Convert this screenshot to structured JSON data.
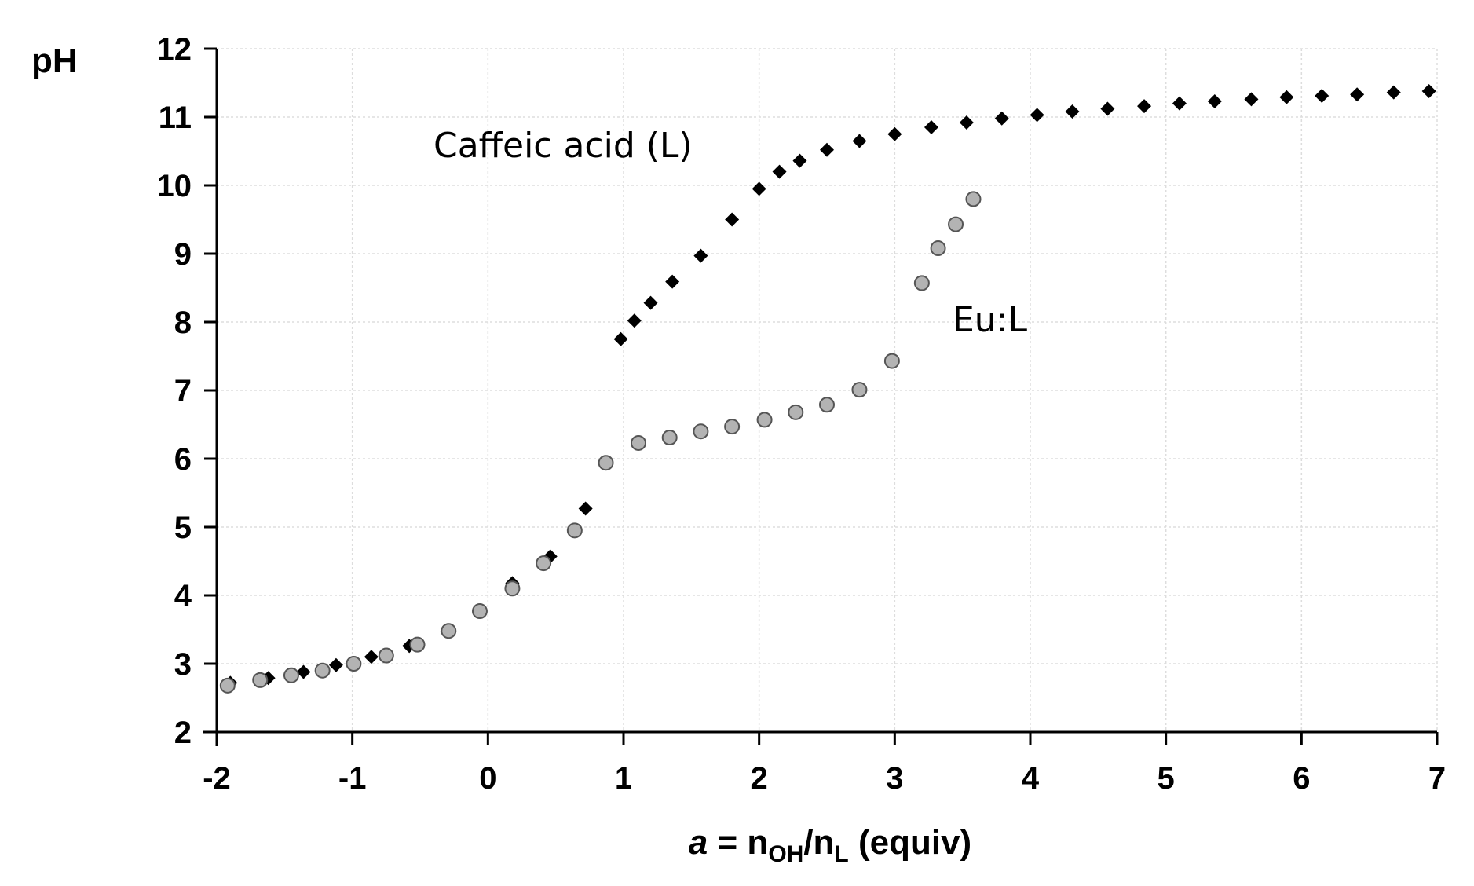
{
  "chart_data": {
    "type": "scatter",
    "xlim": [
      -2,
      7
    ],
    "ylim": [
      2,
      12
    ],
    "xticks": [
      "-2",
      "-1",
      "0",
      "1",
      "2",
      "3",
      "4",
      "5",
      "6",
      "7"
    ],
    "yticks": [
      "2",
      "3",
      "4",
      "5",
      "6",
      "7",
      "8",
      "9",
      "10",
      "11",
      "12"
    ],
    "grid": true,
    "ylabel": "pH",
    "xlabel": {
      "var": "a",
      "eq": " = n",
      "sub1": "OH",
      "slash": "/n",
      "sub2": "L",
      "units": " (equiv)"
    },
    "annotations": {
      "caffeic": "Caffeic acid (L)",
      "eul": "Eu:L"
    },
    "series": [
      {
        "marker": "diamond",
        "color": "#000000",
        "x": [
          -1.9,
          -1.62,
          -1.36,
          -1.12,
          -0.86,
          -0.58,
          -0.3,
          0.18,
          0.46,
          0.72,
          0.98,
          1.08,
          1.2,
          1.36,
          1.57,
          1.8,
          2.0,
          2.15,
          2.3,
          2.5,
          2.74,
          3.0,
          3.27,
          3.53,
          3.79,
          4.05,
          4.31,
          4.57,
          4.84,
          5.1,
          5.36,
          5.63,
          5.89,
          6.15,
          6.41,
          6.68,
          6.94
        ],
        "y": [
          2.72,
          2.79,
          2.88,
          2.98,
          3.1,
          3.26,
          3.47,
          4.18,
          4.57,
          5.27,
          7.75,
          8.02,
          8.28,
          8.59,
          8.97,
          9.5,
          9.95,
          10.2,
          10.36,
          10.52,
          10.65,
          10.75,
          10.85,
          10.92,
          10.98,
          11.03,
          11.08,
          11.12,
          11.16,
          11.2,
          11.23,
          11.26,
          11.29,
          11.31,
          11.33,
          11.36,
          11.38
        ]
      },
      {
        "marker": "circle",
        "color": "#b3b3b3",
        "stroke": "#555555",
        "x": [
          -1.92,
          -1.68,
          -1.45,
          -1.22,
          -0.99,
          -0.75,
          -0.52,
          -0.29,
          -0.06,
          0.18,
          0.41,
          0.64,
          0.87,
          1.11,
          1.34,
          1.57,
          1.8,
          2.04,
          2.27,
          2.5,
          2.74,
          2.98,
          3.2,
          3.32,
          3.45,
          3.58
        ],
        "y": [
          2.68,
          2.76,
          2.83,
          2.9,
          3.0,
          3.12,
          3.28,
          3.48,
          3.77,
          4.1,
          4.47,
          4.95,
          5.94,
          6.23,
          6.31,
          6.4,
          6.47,
          6.57,
          6.68,
          6.79,
          7.01,
          7.43,
          8.57,
          9.08,
          9.43,
          9.8
        ]
      }
    ]
  }
}
